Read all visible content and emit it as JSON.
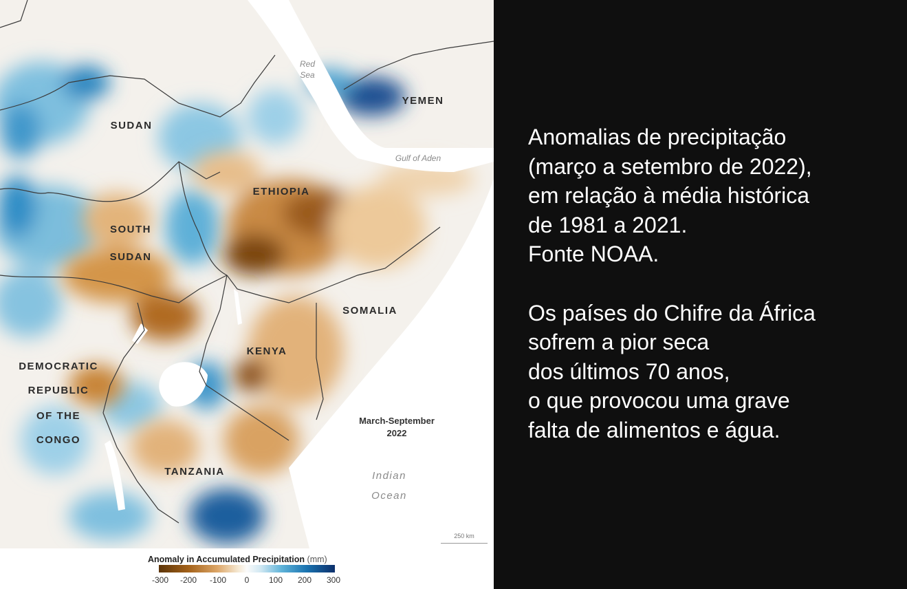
{
  "map": {
    "countries": {
      "sudan": "SUDAN",
      "south_sudan_1": "SOUTH",
      "south_sudan_2": "SUDAN",
      "ethiopia": "ETHIOPIA",
      "somalia": "SOMALIA",
      "kenya": "KENYA",
      "yemen": "YEMEN",
      "drc_1": "DEMOCRATIC",
      "drc_2": "REPUBLIC",
      "drc_3": "OF THE",
      "drc_4": "CONGO",
      "tanzania": "TANZANIA"
    },
    "water": {
      "red_sea_1": "Red",
      "red_sea_2": "Sea",
      "gulf_of_aden": "Gulf of Aden",
      "indian_ocean_1": "Indian",
      "indian_ocean_2": "Ocean"
    },
    "period_line1": "March-September",
    "period_line2": "2022",
    "scale_label": "250 km",
    "legend": {
      "title": "Anomaly in Accumulated Precipitation",
      "unit": "(mm)",
      "ticks": [
        "-300",
        "-200",
        "-100",
        "0",
        "100",
        "200",
        "300"
      ],
      "dry_color": "#a4621a",
      "wet_color": "#1a73b0"
    }
  },
  "caption": {
    "paragraph1": [
      "Anomalias de precipitação",
      "(março a setembro de 2022),",
      "em relação à média histórica",
      "de 1981 a 2021.",
      "Fonte NOAA."
    ],
    "paragraph2": [
      "Os países do Chifre da África",
      "sofrem a pior seca",
      "dos últimos 70 anos,",
      "o que provocou uma grave",
      "falta de alimentos e água."
    ]
  }
}
